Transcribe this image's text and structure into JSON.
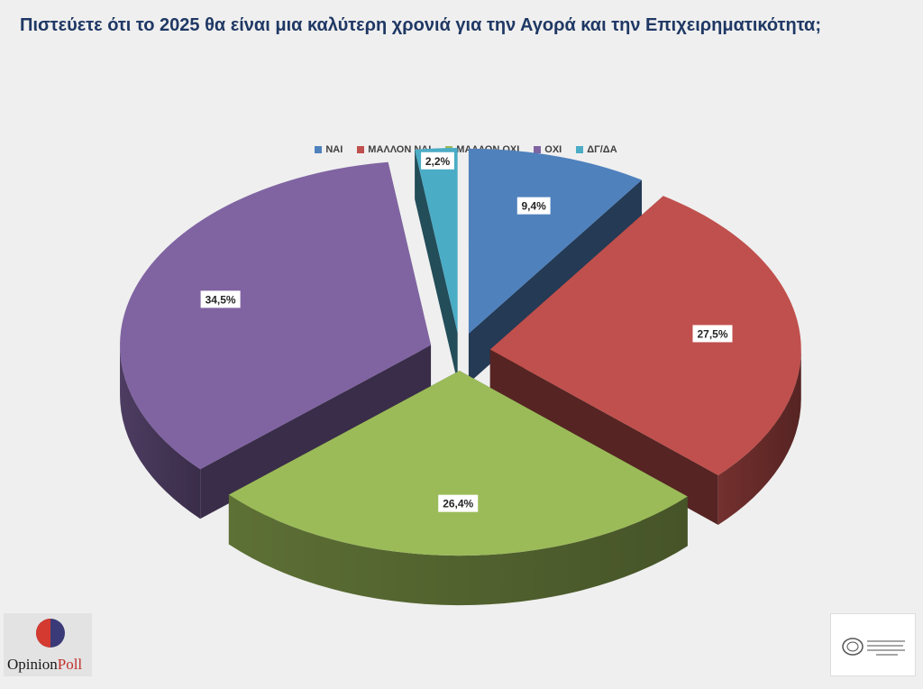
{
  "header": {
    "title": "Πιστεύετε ότι το 2025 θα είναι μια καλύτερη χρονιά για την Αγορά και την Επιχειρηματικότητα;"
  },
  "chart_data": {
    "type": "pie",
    "legend_position": "top",
    "categories": [
      "ΝΑΙ",
      "ΜΑΛΛΟΝ ΝΑΙ",
      "ΜΑΛΛΟΝ ΟΧΙ",
      "ΟΧΙ",
      "ΔΓ/ΔΑ"
    ],
    "values": [
      9.4,
      27.5,
      26.4,
      34.5,
      2.2
    ],
    "labels": [
      "9,4%",
      "27,5%",
      "26,4%",
      "34,5%",
      "2,2%"
    ],
    "colors": [
      "#4f81bd",
      "#c0504d",
      "#9bbb59",
      "#8064a2",
      "#4bacc6"
    ]
  },
  "footer": {
    "logo_left_text_1": "Opinion",
    "logo_left_text_2": "Poll"
  }
}
